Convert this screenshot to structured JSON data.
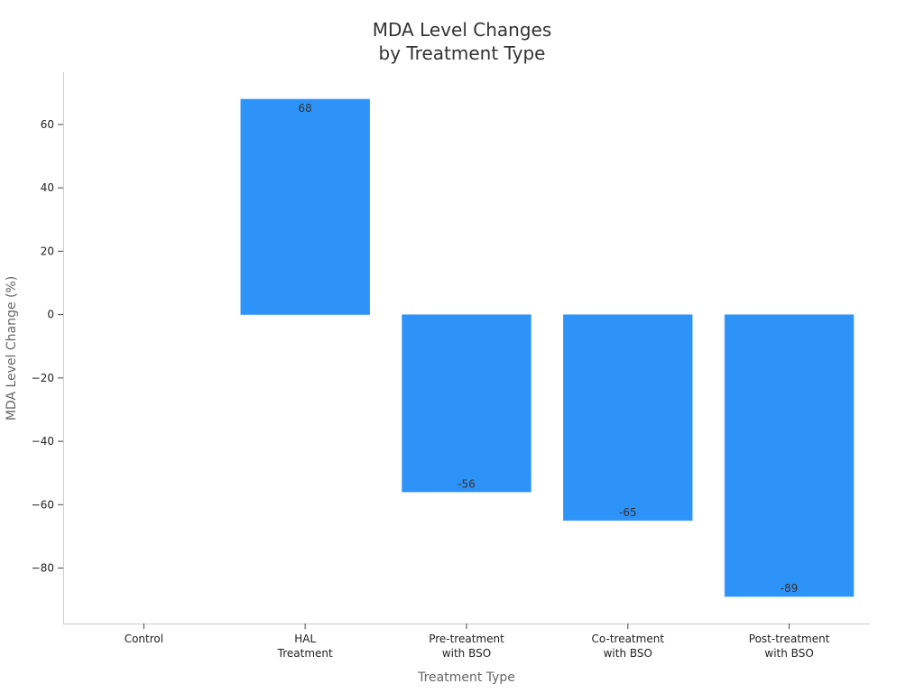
{
  "chart_data": {
    "type": "bar",
    "title": [
      "MDA Level Changes",
      "by Treatment Type"
    ],
    "xlabel": "Treatment Type",
    "ylabel": "MDA Level Change (%)",
    "categories": [
      [
        "Control"
      ],
      [
        "HAL",
        "Treatment"
      ],
      [
        "Pre-treatment",
        "with BSO"
      ],
      [
        "Co-treatment",
        "with BSO"
      ],
      [
        "Post-treatment",
        "with BSO"
      ]
    ],
    "values": [
      0,
      68,
      -56,
      -65,
      -89
    ],
    "data_labels": [
      "",
      "68",
      "-56",
      "-65",
      "-89"
    ],
    "ylim": [
      -97.5,
      76.5
    ],
    "yticks": [
      -80,
      -60,
      -40,
      -20,
      0,
      20,
      40,
      60
    ],
    "ytick_labels": [
      "−80",
      "−60",
      "−40",
      "−20",
      "0",
      "20",
      "40",
      "60"
    ],
    "bar_color": "#2e93f8",
    "grid": false,
    "legend": "none"
  }
}
